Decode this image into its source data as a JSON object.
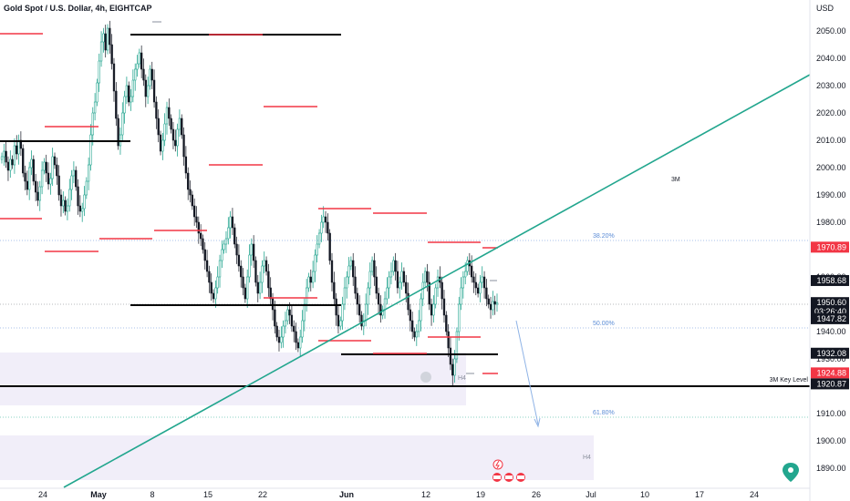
{
  "title": "Gold Spot / U.S. Dollar, 4h, EIGHTCAP",
  "currency": "USD",
  "colors": {
    "bull": "#089981",
    "bear": "#131722",
    "trend": "#22a68e",
    "support": "#000000",
    "resistance": "#f23645",
    "fib": "#5b8cd6",
    "zone": "#f1eef9",
    "arrow": "#8fb3e6",
    "pin": "#22a68e"
  },
  "chart_data": {
    "type": "candlestick",
    "y_ticks": [
      "2050.00",
      "2040.00",
      "2030.00",
      "2020.00",
      "2010.00",
      "2000.00",
      "1990.00",
      "1980.00",
      "1970.00",
      "1960.00",
      "1950.00",
      "1940.00",
      "1930.00",
      "1920.00",
      "1910.00",
      "1900.00",
      "1890.00"
    ],
    "x_ticks": [
      "24",
      "May",
      "8",
      "15",
      "22",
      "Jun",
      "12",
      "19",
      "26",
      "Jul",
      "10",
      "17",
      "24"
    ],
    "ylim": [
      1885,
      2058
    ],
    "price_tags": [
      {
        "label": "1970.89",
        "value": 1970.89,
        "style": "red"
      },
      {
        "label": "1958.68",
        "value": 1958.68,
        "style": "dark"
      },
      {
        "label": "1950.60",
        "value": 1950.6,
        "style": "dark"
      },
      {
        "label": "03:26:40",
        "value": 1947.3,
        "style": "dark"
      },
      {
        "label": "1947.82",
        "value": 1944.7,
        "style": "dark"
      },
      {
        "label": "1932.08",
        "value": 1932.08,
        "style": "dark"
      },
      {
        "label": "1924.88",
        "value": 1924.88,
        "style": "red"
      },
      {
        "label": "1920.87",
        "value": 1920.87,
        "style": "dark"
      }
    ],
    "fib_levels": [
      {
        "label": "38.20%",
        "value": 1974.0
      },
      {
        "label": "50.00%",
        "value": 1946.0
      },
      {
        "label": "61.80%",
        "value": 1909.9
      }
    ],
    "key_level": {
      "label": "3M Key Level",
      "value": 1920.87
    },
    "annotations": {
      "timeframe_3m": "3M",
      "h4_a": "H4",
      "h4_b": "H4"
    },
    "support_levels": [
      2048.9,
      2009.8,
      1949.6,
      1932.1
    ],
    "resistance_levels": [
      2048.9,
      2014.9,
      2001.0,
      2022.0,
      1976.0,
      1970.7,
      1985.2,
      1983.7,
      1972.7,
      1938.5,
      1936.5,
      1932.0,
      1925.0
    ],
    "close": [
      2004,
      2006,
      2002,
      1999,
      2003,
      2001,
      2008,
      2005,
      2010,
      2007,
      1998,
      1995,
      1992,
      2000,
      2003,
      1995,
      1991,
      1988,
      1993,
      1999,
      2002,
      1998,
      1994,
      1996,
      2004,
      2001,
      1997,
      1990,
      1986,
      1988,
      1984,
      1986,
      1992,
      1997,
      1999,
      1993,
      1986,
      1984,
      1985,
      1990,
      1995,
      2001,
      2012,
      2020,
      2024,
      2031,
      2039,
      2046,
      2049,
      2043,
      2051,
      2045,
      2038,
      2028,
      2018,
      2008,
      2012,
      2020,
      2026,
      2030,
      2024,
      2026,
      2032,
      2036,
      2038,
      2042,
      2036,
      2032,
      2026,
      2030,
      2036,
      2032,
      2024,
      2018,
      2012,
      2006,
      2010,
      2016,
      2022,
      2018,
      2014,
      2010,
      2008,
      2014,
      2018,
      2012,
      2004,
      1998,
      1992,
      1990,
      1986,
      1982,
      1980,
      1976,
      1974,
      1970,
      1966,
      1962,
      1958,
      1954,
      1952,
      1956,
      1960,
      1966,
      1970,
      1972,
      1974,
      1978,
      1982,
      1978,
      1972,
      1968,
      1964,
      1960,
      1956,
      1952,
      1960,
      1968,
      1972,
      1966,
      1958,
      1954,
      1958,
      1964,
      1966,
      1962,
      1956,
      1952,
      1948,
      1942,
      1938,
      1936,
      1938,
      1942,
      1944,
      1948,
      1946,
      1942,
      1940,
      1936,
      1934,
      1938,
      1944,
      1950,
      1956,
      1960,
      1958,
      1962,
      1968,
      1972,
      1976,
      1980,
      1982,
      1980,
      1976,
      1966,
      1958,
      1952,
      1946,
      1942,
      1944,
      1950,
      1956,
      1960,
      1964,
      1966,
      1960,
      1954,
      1950,
      1946,
      1942,
      1944,
      1950,
      1956,
      1962,
      1966,
      1960,
      1954,
      1950,
      1946,
      1948,
      1952,
      1956,
      1960,
      1962,
      1966,
      1962,
      1956,
      1958,
      1962,
      1958,
      1954,
      1948,
      1944,
      1940,
      1938,
      1940,
      1944,
      1952,
      1958,
      1962,
      1958,
      1950,
      1946,
      1950,
      1956,
      1960,
      1958,
      1952,
      1946,
      1940,
      1934,
      1928,
      1924,
      1930,
      1940,
      1950,
      1956,
      1960,
      1962,
      1966,
      1964,
      1960,
      1958,
      1956,
      1954,
      1958,
      1960,
      1956,
      1952,
      1950,
      1948,
      1951,
      1950,
      1950.6
    ]
  }
}
